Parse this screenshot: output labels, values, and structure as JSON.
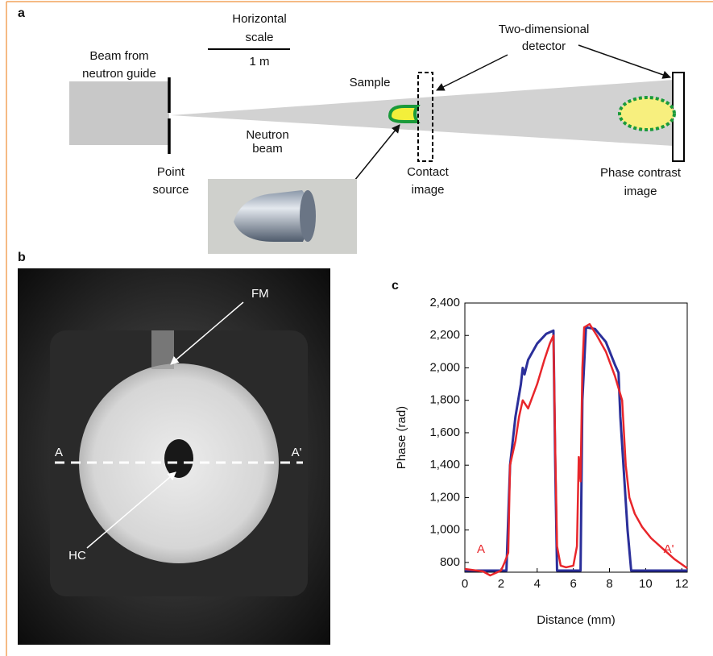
{
  "panel_labels": [
    "a",
    "b",
    "c"
  ],
  "diagram": {
    "scale_label": [
      "Horizontal",
      "scale"
    ],
    "scale_length": "1 m",
    "source_label": [
      "Beam from",
      "neutron guide"
    ],
    "point_source": [
      "Point",
      "source"
    ],
    "beam_label": [
      "Neutron",
      "beam"
    ],
    "sample_label": "Sample",
    "detector_label": [
      "Two-dimensional",
      "detector"
    ],
    "contact_label": [
      "Contact",
      "image"
    ],
    "phase_label": [
      "Phase contrast",
      "image"
    ]
  },
  "image": {
    "labels": [
      "FM",
      "HC",
      "A",
      "A'"
    ]
  },
  "chart_data": {
    "type": "line",
    "xlabel": "Distance (mm)",
    "ylabel": "Phase (rad)",
    "xlim": [
      0,
      12.3
    ],
    "ylim": [
      740,
      2400
    ],
    "xticks": [
      0,
      2,
      4,
      6,
      8,
      10,
      12
    ],
    "yticks": [
      800,
      {
        "value": 1000,
        "label": "1,000"
      },
      {
        "value": 1200,
        "label": "1,200"
      },
      {
        "value": 1400,
        "label": "1,400"
      },
      {
        "value": 1600,
        "label": "1,600"
      },
      {
        "value": 1800,
        "label": "1,800"
      },
      {
        "value": 2000,
        "label": "2,000"
      },
      {
        "value": 2200,
        "label": "2,200"
      },
      {
        "value": 2400,
        "label": "2,400"
      }
    ],
    "annotations": [
      "A",
      "A'"
    ],
    "series": [
      {
        "color": "#2b2f9a",
        "x": [
          0,
          2.2,
          2.3,
          2.5,
          2.8,
          3.1,
          3.2,
          3.3,
          3.5,
          4.0,
          4.5,
          4.9,
          5.0,
          5.1,
          6.4,
          6.5,
          6.7,
          7.2,
          7.8,
          8.3,
          8.5,
          8.6,
          9.0,
          9.2,
          12.3
        ],
        "values": [
          750,
          750,
          750,
          1400,
          1700,
          1900,
          2000,
          1960,
          2050,
          2150,
          2210,
          2230,
          1400,
          750,
          750,
          1800,
          2250,
          2240,
          2160,
          2020,
          1970,
          1700,
          1000,
          750,
          750
        ]
      },
      {
        "color": "#e8262b",
        "x": [
          0,
          1,
          1.4,
          1.6,
          2.0,
          2.2,
          2.4,
          2.5,
          2.8,
          3.0,
          3.2,
          3.5,
          4.0,
          4.4,
          4.7,
          4.9,
          5.0,
          5.1,
          5.3,
          5.6,
          6.0,
          6.2,
          6.3,
          6.4,
          6.5,
          6.6,
          6.9,
          7.3,
          7.8,
          8.3,
          8.7,
          8.9,
          9.1,
          9.4,
          9.8,
          10.3,
          11.0,
          11.6,
          12.3
        ],
        "values": [
          760,
          745,
          720,
          730,
          750,
          800,
          860,
          1400,
          1550,
          1700,
          1800,
          1750,
          1900,
          2050,
          2150,
          2200,
          1500,
          900,
          780,
          770,
          780,
          900,
          1450,
          1300,
          2000,
          2250,
          2270,
          2200,
          2100,
          1950,
          1800,
          1400,
          1200,
          1100,
          1020,
          950,
          880,
          820,
          765
        ]
      }
    ]
  }
}
